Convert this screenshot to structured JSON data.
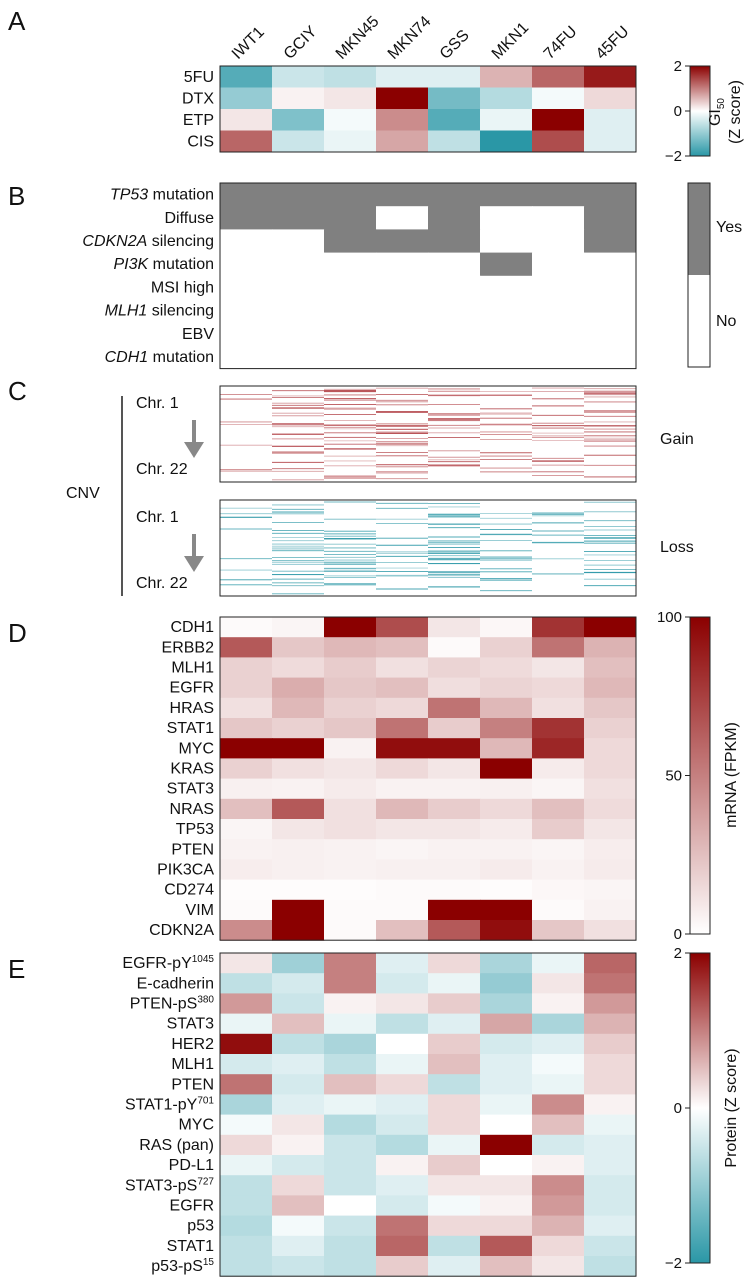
{
  "colors": {
    "high": "#8b0000",
    "mid": "#ffffff",
    "low": "#2a97a6",
    "yes": "#808080",
    "no": "#ffffff",
    "gain_line": "#b5484d",
    "loss_line": "#2a97a6"
  },
  "panel_labels": [
    "A",
    "B",
    "C",
    "D",
    "E"
  ],
  "columns": [
    "IWT1",
    "GCIY",
    "MKN45",
    "MKN74",
    "GSS",
    "MKN1",
    "74FU",
    "45FU"
  ],
  "chart_data": [
    {
      "type": "heatmap",
      "panel": "A",
      "rows": [
        "5FU",
        "DTX",
        "ETP",
        "CIS"
      ],
      "values": [
        [
          -1.6,
          -0.5,
          -0.6,
          -0.3,
          -0.3,
          0.6,
          1.2,
          1.8
        ],
        [
          -1.0,
          0.1,
          0.2,
          2.5,
          -1.3,
          -0.7,
          -0.1,
          0.3
        ],
        [
          0.2,
          -1.2,
          -0.1,
          0.9,
          -1.6,
          -0.2,
          2.0,
          -0.3
        ],
        [
          1.2,
          -0.5,
          -0.2,
          0.7,
          -0.6,
          -2.0,
          1.4,
          -0.3
        ]
      ],
      "colorbar": {
        "ticks": [
          "2",
          "0",
          "−2"
        ],
        "min": -2,
        "max": 2,
        "label_main": "GI",
        "label_sub": "50",
        "label_line2": "(Z score)"
      }
    },
    {
      "type": "heatmap",
      "panel": "B",
      "rows": [
        {
          "italic": "TP53",
          "rest": " mutation"
        },
        {
          "italic": "",
          "rest": "Diffuse"
        },
        {
          "italic": "CDKN2A",
          "rest": " silencing"
        },
        {
          "italic": "PI3K",
          "rest": " mutation"
        },
        {
          "italic": "",
          "rest": "MSI high"
        },
        {
          "italic": "MLH1",
          "rest": " silencing"
        },
        {
          "italic": "",
          "rest": "EBV"
        },
        {
          "italic": "CDH1",
          "rest": " mutation"
        }
      ],
      "values": [
        [
          1,
          1,
          1,
          1,
          1,
          1,
          1,
          1
        ],
        [
          1,
          1,
          1,
          0,
          1,
          0,
          0,
          1
        ],
        [
          0,
          0,
          1,
          1,
          1,
          0,
          0,
          1
        ],
        [
          0,
          0,
          0,
          0,
          0,
          1,
          0,
          0
        ],
        [
          0,
          0,
          0,
          0,
          0,
          0,
          0,
          0
        ],
        [
          0,
          0,
          0,
          0,
          0,
          0,
          0,
          0
        ],
        [
          0,
          0,
          0,
          0,
          0,
          0,
          0,
          0
        ],
        [
          0,
          0,
          0,
          0,
          0,
          0,
          0,
          0
        ]
      ],
      "legend": [
        "Yes",
        "No"
      ]
    },
    {
      "type": "heatmap",
      "panel": "C",
      "group_label": "CNV",
      "chr_start": "Chr. 1",
      "chr_end": "Chr. 22",
      "gain_label": "Gain",
      "loss_label": "Loss",
      "gain_density": [
        0.12,
        0.45,
        0.55,
        0.5,
        0.4,
        0.3,
        0.35,
        0.5
      ],
      "loss_density": [
        0.15,
        0.45,
        0.4,
        0.25,
        0.55,
        0.3,
        0.2,
        0.35
      ]
    },
    {
      "type": "heatmap",
      "panel": "D",
      "rows": [
        "CDH1",
        "ERBB2",
        "MLH1",
        "EGFR",
        "HRAS",
        "STAT1",
        "MYC",
        "KRAS",
        "STAT3",
        "NRAS",
        "TP53",
        "PTEN",
        "PIK3CA",
        "CD274",
        "VIM",
        "CDKN2A"
      ],
      "values": [
        [
          2,
          4,
          100,
          70,
          10,
          3,
          80,
          100
        ],
        [
          65,
          22,
          28,
          25,
          2,
          18,
          55,
          30
        ],
        [
          18,
          14,
          20,
          12,
          17,
          14,
          10,
          25
        ],
        [
          18,
          32,
          22,
          25,
          13,
          17,
          15,
          28
        ],
        [
          12,
          28,
          18,
          15,
          55,
          28,
          12,
          22
        ],
        [
          22,
          18,
          22,
          55,
          20,
          50,
          80,
          18
        ],
        [
          100,
          100,
          5,
          95,
          95,
          28,
          85,
          15
        ],
        [
          18,
          12,
          10,
          15,
          10,
          100,
          8,
          15
        ],
        [
          6,
          5,
          8,
          5,
          5,
          6,
          4,
          12
        ],
        [
          25,
          65,
          12,
          28,
          20,
          15,
          25,
          14
        ],
        [
          4,
          10,
          12,
          10,
          10,
          8,
          20,
          10
        ],
        [
          5,
          6,
          5,
          4,
          5,
          5,
          4,
          7
        ],
        [
          7,
          6,
          5,
          6,
          6,
          8,
          5,
          8
        ],
        [
          1,
          1,
          1,
          2,
          2,
          1,
          3,
          4
        ],
        [
          2,
          100,
          2,
          2,
          100,
          100,
          2,
          5
        ],
        [
          45,
          100,
          2,
          25,
          65,
          95,
          22,
          12
        ]
      ],
      "colorbar": {
        "ticks": [
          "100",
          "50",
          "0"
        ],
        "min": 0,
        "max": 100,
        "label": "mRNA (FPKM)"
      }
    },
    {
      "type": "heatmap",
      "panel": "E",
      "rows": [
        {
          "main": "EGFR-pY",
          "sup": "1045"
        },
        {
          "main": "E-cadherin",
          "sup": ""
        },
        {
          "main": "PTEN-pS",
          "sup": "380"
        },
        {
          "main": "STAT3",
          "sup": ""
        },
        {
          "main": "HER2",
          "sup": ""
        },
        {
          "main": "MLH1",
          "sup": ""
        },
        {
          "main": "PTEN",
          "sup": ""
        },
        {
          "main": "STAT1-pY",
          "sup": "701"
        },
        {
          "main": "MYC",
          "sup": ""
        },
        {
          "main": "RAS (pan)",
          "sup": ""
        },
        {
          "main": "PD-L1",
          "sup": ""
        },
        {
          "main": "STAT3-pS",
          "sup": "727"
        },
        {
          "main": "EGFR",
          "sup": ""
        },
        {
          "main": "p53",
          "sup": ""
        },
        {
          "main": "STAT1",
          "sup": ""
        },
        {
          "main": "p53-pS",
          "sup": "15"
        }
      ],
      "values": [
        [
          0.2,
          -0.9,
          1.0,
          -0.3,
          0.3,
          -0.8,
          -0.2,
          1.2
        ],
        [
          -0.6,
          -0.4,
          1.0,
          -0.4,
          -0.2,
          -1.0,
          0.2,
          1.1
        ],
        [
          0.8,
          -0.5,
          0.1,
          0.2,
          0.4,
          -0.8,
          0.1,
          0.8
        ],
        [
          -0.2,
          0.5,
          -0.2,
          -0.6,
          -0.3,
          0.7,
          -0.8,
          0.6
        ],
        [
          1.9,
          -0.6,
          -0.8,
          0.0,
          0.4,
          -0.4,
          -0.3,
          0.4
        ],
        [
          -0.4,
          -0.3,
          -0.6,
          -0.2,
          0.5,
          -0.3,
          -0.1,
          0.3
        ],
        [
          1.1,
          -0.4,
          0.5,
          0.3,
          -0.6,
          -0.3,
          -0.2,
          0.3
        ],
        [
          -0.8,
          -0.3,
          -0.2,
          -0.3,
          0.3,
          -0.2,
          0.9,
          0.1
        ],
        [
          -0.1,
          0.2,
          -0.7,
          -0.4,
          0.3,
          0.0,
          0.5,
          -0.2
        ],
        [
          0.3,
          0.1,
          -0.5,
          -0.7,
          -0.2,
          2.0,
          -0.4,
          -0.3
        ],
        [
          -0.2,
          -0.4,
          -0.5,
          0.1,
          0.4,
          0.0,
          0.1,
          -0.3
        ],
        [
          -0.6,
          0.3,
          -0.5,
          -0.3,
          0.2,
          0.2,
          0.9,
          -0.4
        ],
        [
          -0.6,
          0.5,
          0.0,
          -0.4,
          -0.1,
          0.1,
          0.8,
          -0.4
        ],
        [
          -0.7,
          -0.1,
          -0.5,
          1.1,
          0.3,
          0.3,
          0.6,
          -0.3
        ],
        [
          -0.6,
          -0.3,
          -0.6,
          1.2,
          -0.6,
          1.3,
          0.3,
          -0.5
        ],
        [
          -0.6,
          -0.5,
          -0.6,
          0.4,
          -0.3,
          0.5,
          0.2,
          -0.6
        ]
      ],
      "colorbar": {
        "ticks": [
          "2",
          "0",
          "−2"
        ],
        "min": -2,
        "max": 2,
        "label": "Protein (Z score)"
      }
    }
  ]
}
